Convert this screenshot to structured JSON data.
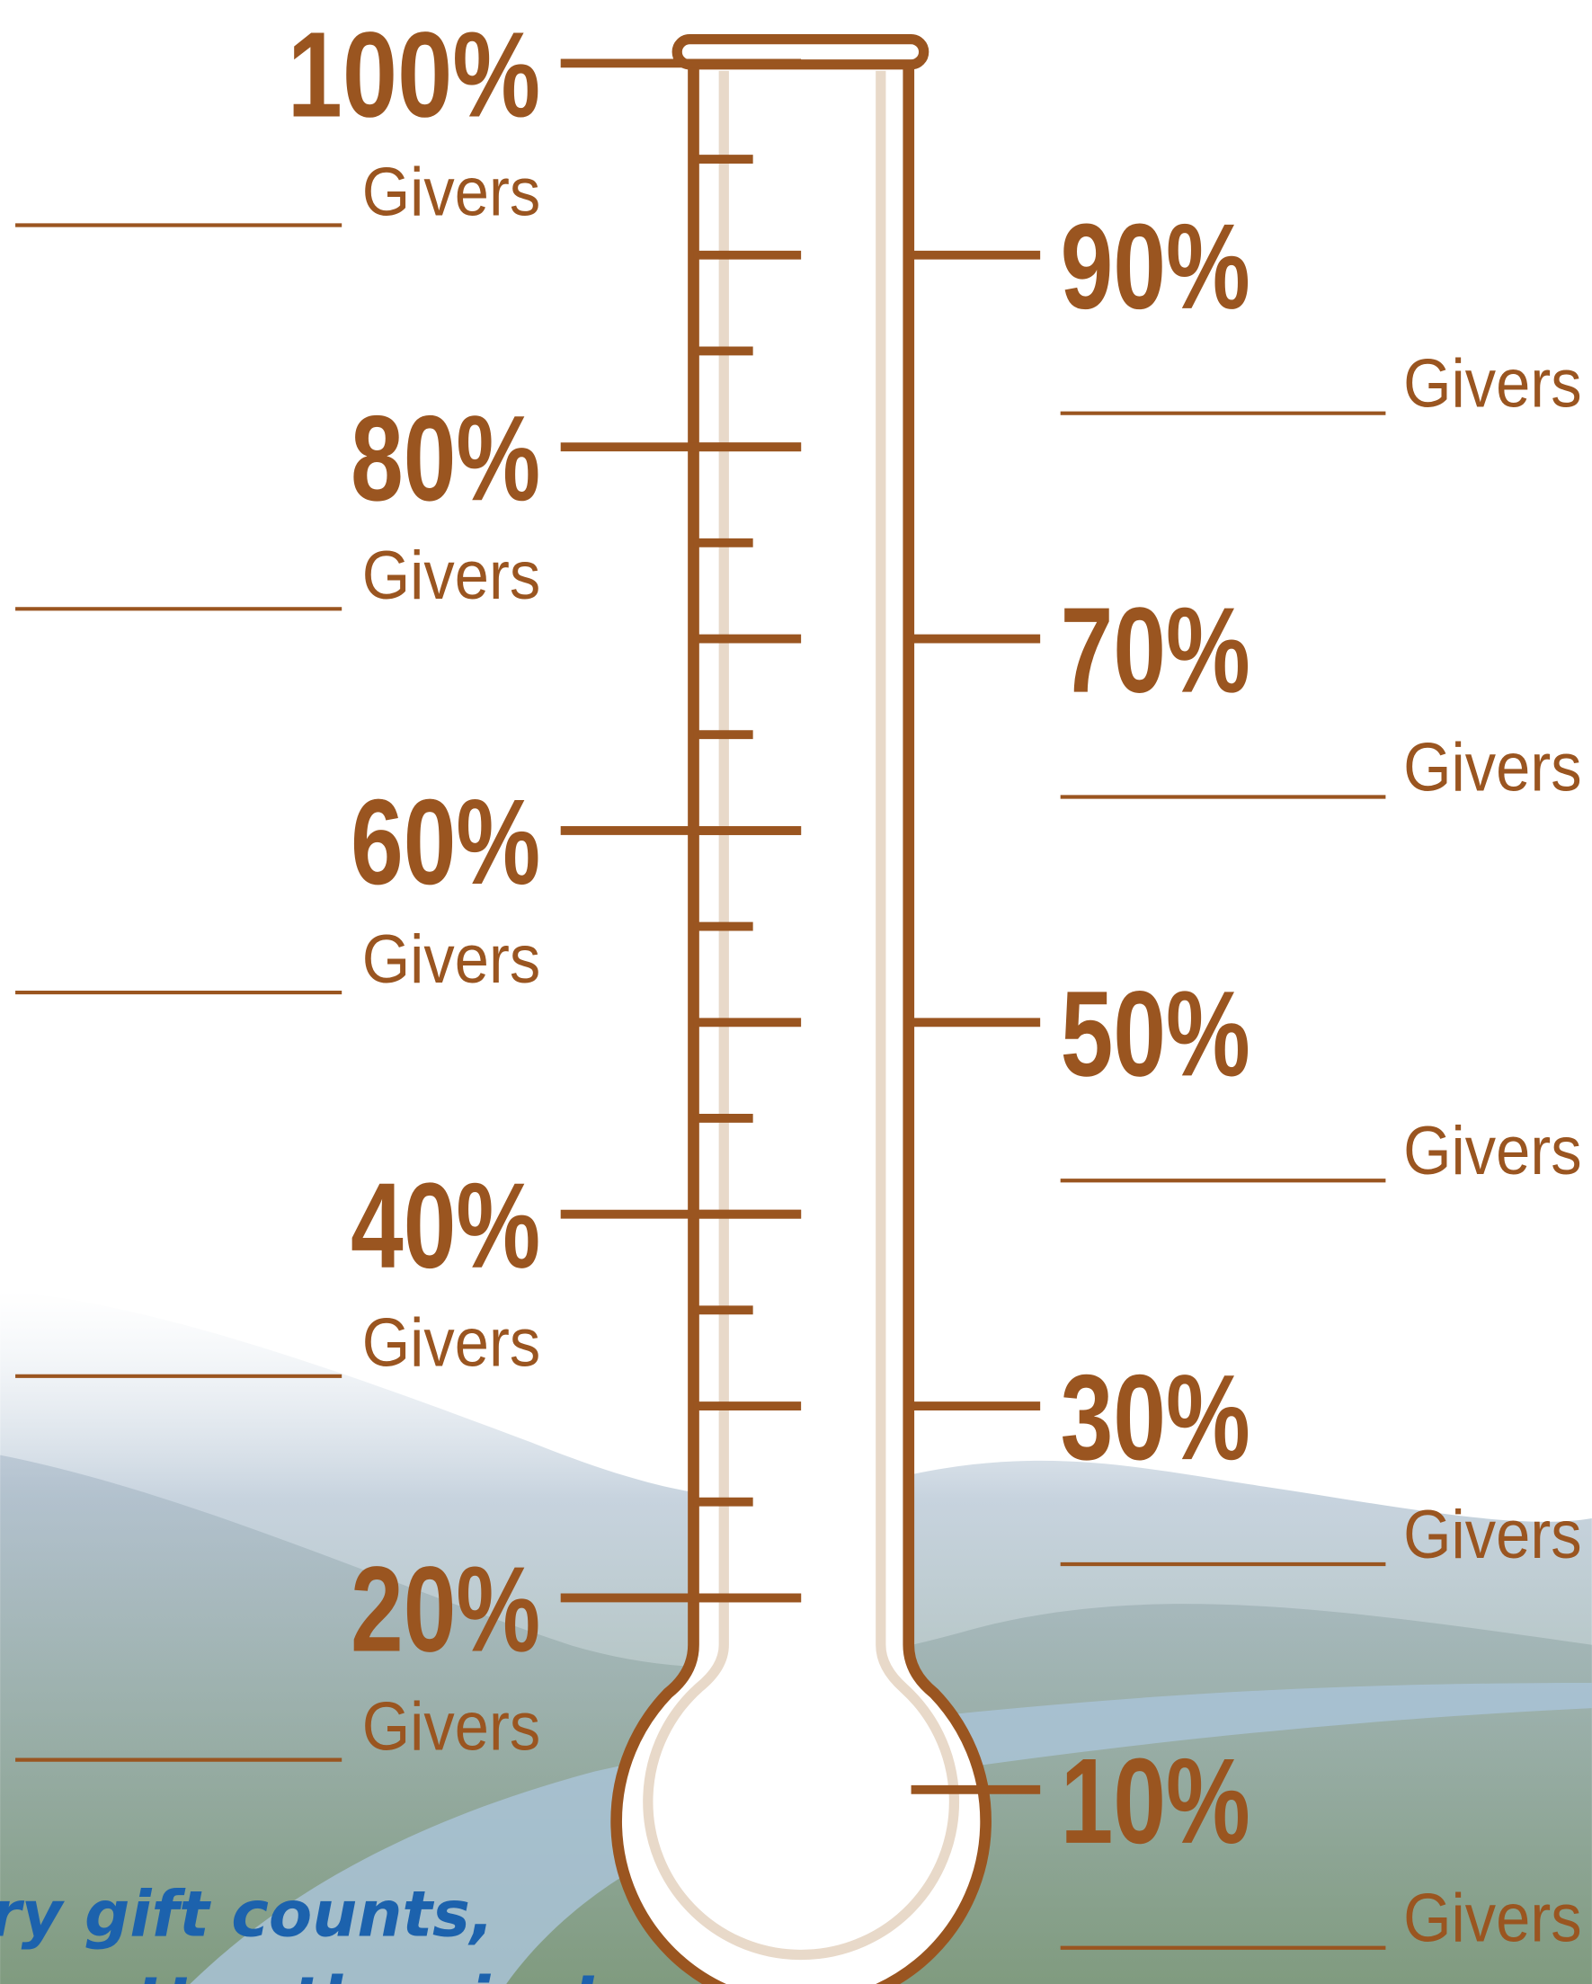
{
  "milestones": [
    {
      "percent": "100%",
      "label": "Givers"
    },
    {
      "percent": "90%",
      "label": "Givers"
    },
    {
      "percent": "80%",
      "label": "Givers"
    },
    {
      "percent": "70%",
      "label": "Givers"
    },
    {
      "percent": "60%",
      "label": "Givers"
    },
    {
      "percent": "50%",
      "label": "Givers"
    },
    {
      "percent": "40%",
      "label": "Givers"
    },
    {
      "percent": "30%",
      "label": "Givers"
    },
    {
      "percent": "20%",
      "label": "Givers"
    },
    {
      "percent": "10%",
      "label": "Givers"
    }
  ],
  "tagline": [
    "ry gift counts,",
    "matter the size!"
  ]
}
